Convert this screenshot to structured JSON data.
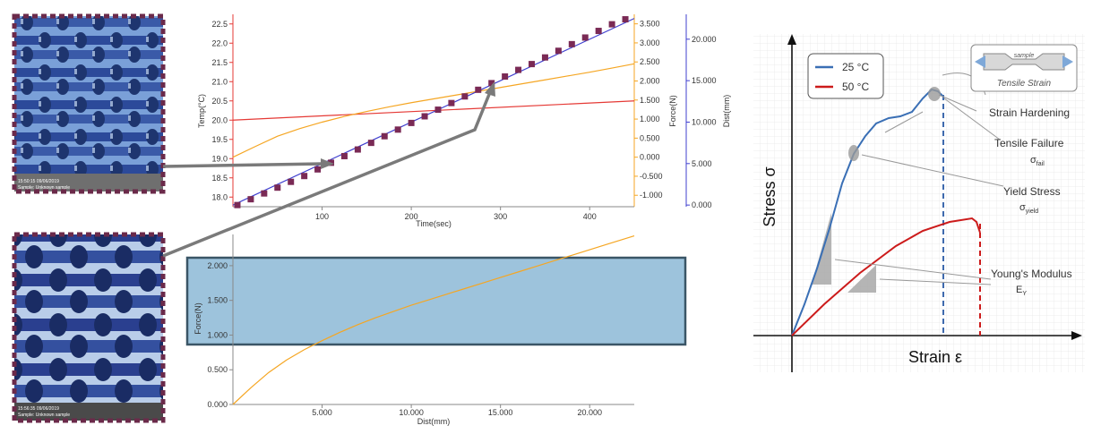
{
  "colors": {
    "temp": "#e53935",
    "force": "#f5a623",
    "dist": "#3f3fcf",
    "marker": "#7a2a55",
    "blue_curve": "#3a6fb5",
    "red_curve": "#cc1b1b",
    "panel": "#9dc3dc"
  },
  "photos": {
    "top_caption": [
      "15:50:15 09/06/2019",
      "Sample: Unknown sample"
    ],
    "bottom_caption": [
      "15:56:35 09/06/2019",
      "Sample: Unknown sample"
    ]
  },
  "chart_data": [
    {
      "type": "line",
      "title": "",
      "xlabel": "Time(sec)",
      "xlim": [
        0,
        450
      ],
      "x_ticks": [
        "100",
        "200",
        "300",
        "400"
      ],
      "ylabel_left": "Temp(°C)",
      "ylim_left": [
        17.75,
        22.75
      ],
      "y_ticks_left": [
        "18.0",
        "18.5",
        "19.0",
        "19.5",
        "20.0",
        "20.5",
        "21.0",
        "21.5",
        "22.0",
        "22.5"
      ],
      "ylabel_mid": "Force(N)",
      "ylim_mid": [
        -1.3,
        3.75
      ],
      "y_ticks_mid": [
        "-1.000",
        "-0.500",
        "0.000",
        "0.500",
        "1.000",
        "1.500",
        "2.000",
        "2.500",
        "3.000",
        "3.500"
      ],
      "ylabel_right": "Dist(mm)",
      "ylim_right": [
        -0.2,
        23.0
      ],
      "y_ticks_right": [
        "0.000",
        "5.000",
        "10.000",
        "15.000",
        "20.000"
      ],
      "series": [
        {
          "name": "Temp",
          "axis": "left",
          "x": [
            0,
            450
          ],
          "values": [
            20.0,
            20.5
          ]
        },
        {
          "name": "Force",
          "axis": "mid",
          "x": [
            0,
            25,
            50,
            75,
            100,
            125,
            150,
            175,
            200,
            225,
            250,
            275,
            300,
            325,
            350,
            375,
            400,
            425,
            450
          ],
          "values": [
            0.0,
            0.28,
            0.55,
            0.75,
            0.92,
            1.07,
            1.2,
            1.32,
            1.43,
            1.53,
            1.63,
            1.73,
            1.83,
            1.93,
            2.03,
            2.13,
            2.23,
            2.34,
            2.45
          ]
        },
        {
          "name": "Dist",
          "axis": "right",
          "x": [
            0,
            450
          ],
          "values": [
            0.0,
            22.5
          ]
        },
        {
          "name": "Dist samples",
          "axis": "right",
          "style": "markers",
          "x": [
            5,
            20,
            35,
            50,
            65,
            80,
            95,
            110,
            125,
            140,
            155,
            170,
            185,
            200,
            215,
            230,
            245,
            260,
            275,
            290,
            305,
            320,
            335,
            350,
            365,
            380,
            395,
            410,
            425,
            440
          ],
          "values": [
            0.0,
            0.7,
            1.4,
            2.1,
            2.8,
            3.5,
            4.3,
            5.1,
            5.9,
            6.7,
            7.5,
            8.3,
            9.1,
            9.9,
            10.7,
            11.5,
            12.3,
            13.1,
            13.9,
            14.7,
            15.5,
            16.3,
            17.0,
            17.8,
            18.6,
            19.4,
            20.2,
            21.0,
            21.8,
            22.4
          ]
        }
      ]
    },
    {
      "type": "line",
      "title": "",
      "xlabel": "Dist(mm)",
      "xlim": [
        0,
        22.5
      ],
      "x_ticks": [
        "5.000",
        "10.000",
        "15.000",
        "20.000"
      ],
      "ylabel": "Force(N)",
      "ylim": [
        0,
        2.45
      ],
      "y_ticks": [
        "0.000",
        "0.500",
        "1.000",
        "1.500",
        "2.000"
      ],
      "highlight_band": [
        0.87,
        2.1
      ],
      "series": [
        {
          "name": "Force",
          "x": [
            0,
            1,
            2,
            3,
            4,
            5,
            6,
            7,
            8,
            9,
            10,
            11,
            12,
            13,
            14,
            15,
            16,
            17,
            18,
            19,
            20,
            21,
            22.5
          ],
          "values": [
            0.0,
            0.24,
            0.46,
            0.64,
            0.79,
            0.92,
            1.04,
            1.15,
            1.25,
            1.34,
            1.43,
            1.51,
            1.59,
            1.67,
            1.75,
            1.83,
            1.91,
            1.99,
            2.07,
            2.15,
            2.23,
            2.31,
            2.43
          ]
        }
      ]
    },
    {
      "type": "line",
      "title": "",
      "xlabel": "Strain ε",
      "ylabel": "Stress σ",
      "xlim": [
        0,
        1
      ],
      "ylim": [
        0,
        1
      ],
      "legend": [
        "25 °C",
        "50 °C"
      ],
      "inset_title": "sample",
      "inset_caption": "Tensile Strain",
      "annotations": [
        {
          "label": "Strain Hardening",
          "sub": ""
        },
        {
          "label": "Tensile Failure",
          "sub": "σ",
          "subscript": "fail"
        },
        {
          "label": "Yield Stress",
          "sub": "σ",
          "subscript": "yield"
        },
        {
          "label": "Young's Modulus",
          "sub": "E",
          "subscript": "Y"
        }
      ],
      "series": [
        {
          "name": "25 °C",
          "x": [
            0.0,
            0.1,
            0.2,
            0.3,
            0.4,
            0.5,
            0.6,
            0.63
          ],
          "values": [
            0.0,
            0.45,
            0.72,
            0.74,
            0.8,
            0.9,
            0.96,
            0.92
          ]
        },
        {
          "name": "50 °C",
          "x": [
            0.0,
            0.2,
            0.4,
            0.6,
            0.75,
            0.78,
            0.8
          ],
          "values": [
            0.0,
            0.18,
            0.34,
            0.45,
            0.48,
            0.47,
            0.0
          ]
        }
      ]
    }
  ]
}
